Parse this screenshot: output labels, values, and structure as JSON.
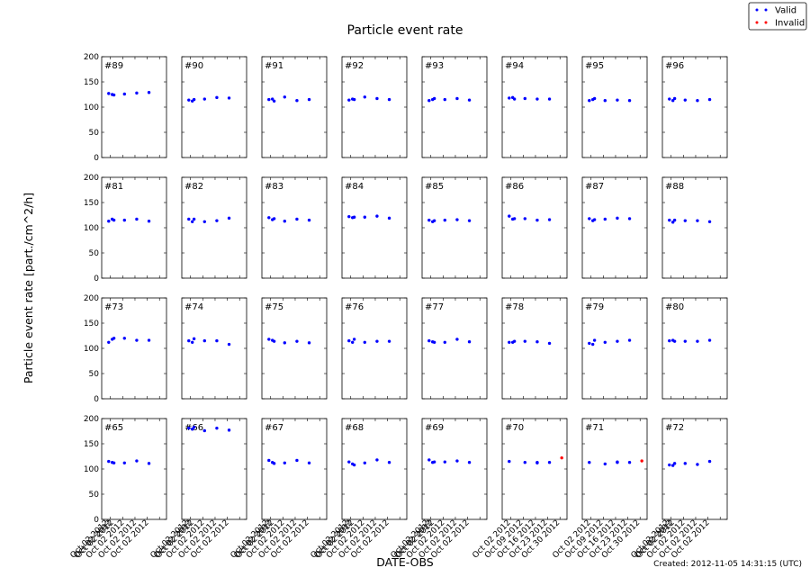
{
  "chart_data": {
    "type": "scatter",
    "title": "Particle event rate",
    "xlabel": "DATE-OBS",
    "ylabel": "Particle event rate [part./cm^2/h]",
    "ylim": [
      0,
      200
    ],
    "yticks": [
      0,
      50,
      100,
      150,
      200
    ],
    "xlim": [
      "2012-09-27",
      "2012-11-03"
    ],
    "xtick_dates": [
      "2012-10-02",
      "2012-10-09",
      "2012-10-16",
      "2012-10-23",
      "2012-10-30"
    ],
    "xtick_labels": [
      "Oct 02 2012",
      "Oct 09 2012",
      "Oct 16 2012",
      "Oct 23 2012",
      "Oct 30 2012"
    ],
    "obs_dates": [
      "2012-10-01",
      "2012-10-03",
      "2012-10-04",
      "2012-10-10",
      "2012-10-17",
      "2012-10-24",
      "2012-10-31"
    ],
    "grid": false,
    "legend": {
      "placement": "top-right",
      "entries": [
        {
          "label": "Valid",
          "color": "#0000ff"
        },
        {
          "label": "Invalid",
          "color": "#ff0000"
        }
      ]
    },
    "footer": "Created: 2012-11-05 14:31:15 (UTC)",
    "panels": [
      {
        "label": "#89",
        "valid": [
          127,
          125,
          124,
          126,
          128,
          129
        ],
        "invalid": []
      },
      {
        "label": "#90",
        "valid": [
          114,
          112,
          115,
          116,
          119,
          118
        ],
        "invalid": []
      },
      {
        "label": "#91",
        "valid": [
          115,
          116,
          112,
          120,
          113,
          115
        ],
        "invalid": []
      },
      {
        "label": "#92",
        "valid": [
          114,
          116,
          115,
          120,
          117,
          115
        ],
        "invalid": []
      },
      {
        "label": "#93",
        "valid": [
          113,
          115,
          117,
          115,
          117,
          114
        ],
        "invalid": []
      },
      {
        "label": "#94",
        "valid": [
          118,
          119,
          116,
          117,
          116,
          116
        ],
        "invalid": []
      },
      {
        "label": "#95",
        "valid": [
          113,
          115,
          117,
          113,
          114,
          113
        ],
        "invalid": []
      },
      {
        "label": "#96",
        "valid": [
          116,
          113,
          117,
          114,
          113,
          115
        ],
        "invalid": []
      },
      {
        "label": "#81",
        "valid": [
          113,
          117,
          115,
          115,
          117,
          113
        ],
        "invalid": []
      },
      {
        "label": "#82",
        "valid": [
          117,
          112,
          117,
          112,
          114,
          119
        ],
        "invalid": []
      },
      {
        "label": "#83",
        "valid": [
          120,
          116,
          118,
          113,
          117,
          115
        ],
        "invalid": []
      },
      {
        "label": "#84",
        "valid": [
          122,
          120,
          121,
          121,
          123,
          119
        ],
        "invalid": []
      },
      {
        "label": "#85",
        "valid": [
          115,
          112,
          114,
          115,
          116,
          114
        ],
        "invalid": []
      },
      {
        "label": "#86",
        "valid": [
          123,
          117,
          118,
          118,
          115,
          116
        ],
        "invalid": []
      },
      {
        "label": "#87",
        "valid": [
          118,
          114,
          116,
          117,
          119,
          118
        ],
        "invalid": []
      },
      {
        "label": "#88",
        "valid": [
          115,
          111,
          115,
          114,
          114,
          112
        ],
        "invalid": []
      },
      {
        "label": "#73",
        "valid": [
          112,
          118,
          120,
          120,
          116,
          116
        ],
        "invalid": []
      },
      {
        "label": "#74",
        "valid": [
          115,
          112,
          119,
          115,
          115,
          108
        ],
        "invalid": []
      },
      {
        "label": "#75",
        "valid": [
          118,
          116,
          114,
          111,
          114,
          111
        ],
        "invalid": []
      },
      {
        "label": "#76",
        "valid": [
          115,
          112,
          118,
          112,
          114,
          114
        ],
        "invalid": []
      },
      {
        "label": "#77",
        "valid": [
          115,
          113,
          112,
          112,
          118,
          113
        ],
        "invalid": []
      },
      {
        "label": "#78",
        "valid": [
          112,
          112,
          114,
          114,
          113,
          110
        ],
        "invalid": []
      },
      {
        "label": "#79",
        "valid": [
          110,
          108,
          116,
          112,
          114,
          116
        ],
        "invalid": []
      },
      {
        "label": "#80",
        "valid": [
          115,
          116,
          114,
          114,
          114,
          116
        ],
        "invalid": []
      },
      {
        "label": "#65",
        "valid": [
          115,
          113,
          112,
          112,
          116,
          111
        ],
        "invalid": []
      },
      {
        "label": "#66",
        "valid": [
          181,
          179,
          183,
          176,
          181,
          177
        ],
        "invalid": []
      },
      {
        "label": "#67",
        "valid": [
          117,
          113,
          111,
          112,
          117,
          112
        ],
        "invalid": []
      },
      {
        "label": "#68",
        "valid": [
          114,
          110,
          108,
          112,
          118,
          113
        ],
        "invalid": []
      },
      {
        "label": "#69",
        "valid": [
          118,
          113,
          114,
          114,
          116,
          113
        ],
        "invalid": []
      },
      {
        "label": "#70",
        "valid": [
          115,
          113,
          113,
          113,
          112
        ],
        "invalid": [
          122
        ]
      },
      {
        "label": "#71",
        "valid": [
          113,
          110,
          114,
          113,
          113
        ],
        "invalid": [
          116
        ]
      },
      {
        "label": "#72",
        "valid": [
          108,
          107,
          111,
          111,
          109,
          115
        ],
        "invalid": []
      }
    ],
    "tick_label_panels": [
      {
        "label": "#65",
        "stacked": true
      },
      {
        "label": "#66",
        "stacked": true
      },
      {
        "label": "#67",
        "stacked": true
      },
      {
        "label": "#68",
        "stacked": true
      },
      {
        "label": "#69",
        "stacked": true
      },
      {
        "label": "#70",
        "stacked": false
      },
      {
        "label": "#71",
        "stacked": false
      },
      {
        "label": "#72",
        "stacked": true
      }
    ]
  }
}
